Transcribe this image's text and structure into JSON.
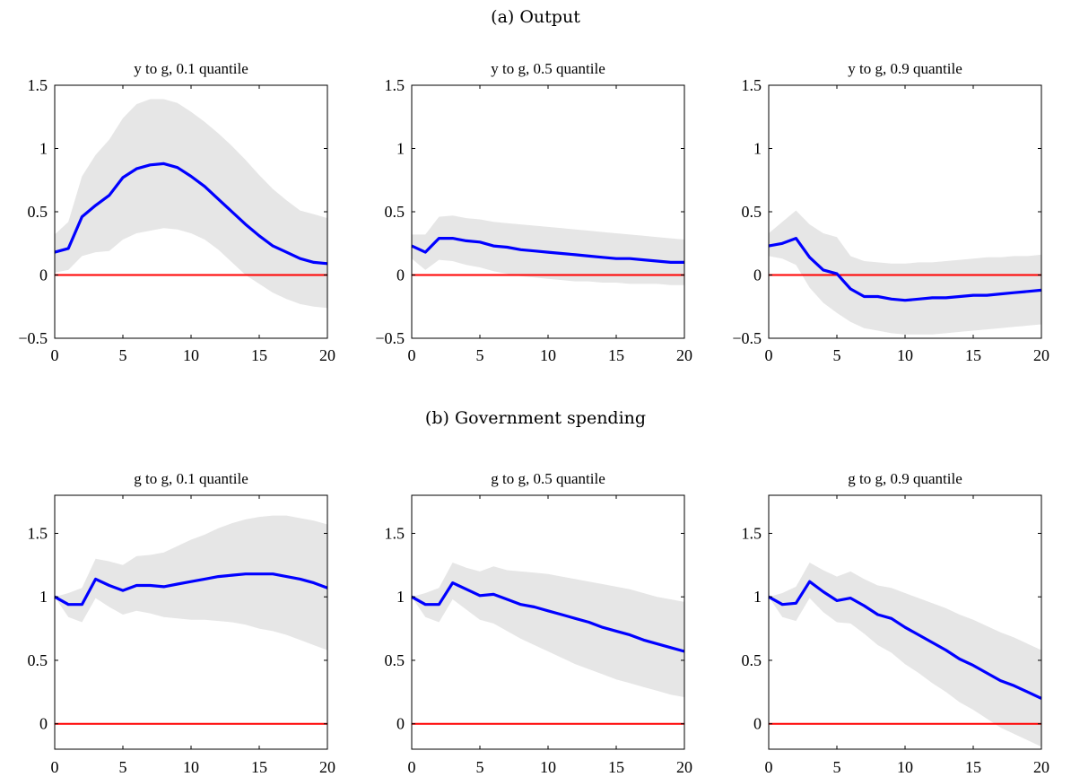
{
  "headings": {
    "a": "(a) Output",
    "b": "(b) Government spending"
  },
  "chart_data": [
    {
      "type": "area",
      "title": "y to g, 0.1 quantile",
      "xlabel": "",
      "ylabel": "",
      "xlim": [
        0,
        20
      ],
      "ylim": [
        -0.5,
        1.5
      ],
      "xticks": [
        0,
        5,
        10,
        15,
        20
      ],
      "yticks": [
        -0.5,
        0,
        0.5,
        1,
        1.5
      ],
      "ytick_labels": [
        "−0.5",
        "0",
        "0.5",
        "1",
        "1.5"
      ],
      "grid": false,
      "reference_line": 0,
      "colors": {
        "line": "#0000ff",
        "band": "#e6e6e6",
        "reference": "#ff0000"
      },
      "x": [
        0,
        1,
        2,
        3,
        4,
        5,
        6,
        7,
        8,
        9,
        10,
        11,
        12,
        13,
        14,
        15,
        16,
        17,
        18,
        19,
        20
      ],
      "median": [
        0.18,
        0.21,
        0.46,
        0.55,
        0.63,
        0.77,
        0.84,
        0.87,
        0.88,
        0.85,
        0.78,
        0.7,
        0.6,
        0.5,
        0.4,
        0.31,
        0.23,
        0.18,
        0.13,
        0.1,
        0.09
      ],
      "lower": [
        0.02,
        0.04,
        0.15,
        0.18,
        0.19,
        0.28,
        0.33,
        0.35,
        0.37,
        0.36,
        0.33,
        0.28,
        0.2,
        0.1,
        0.0,
        -0.07,
        -0.14,
        -0.19,
        -0.23,
        -0.25,
        -0.26
      ],
      "upper": [
        0.32,
        0.42,
        0.78,
        0.95,
        1.07,
        1.24,
        1.35,
        1.39,
        1.39,
        1.36,
        1.29,
        1.21,
        1.12,
        1.02,
        0.91,
        0.79,
        0.68,
        0.59,
        0.51,
        0.48,
        0.45
      ]
    },
    {
      "type": "area",
      "title": "y to g, 0.5 quantile",
      "xlabel": "",
      "ylabel": "",
      "xlim": [
        0,
        20
      ],
      "ylim": [
        -0.5,
        1.5
      ],
      "xticks": [
        0,
        5,
        10,
        15,
        20
      ],
      "yticks": [
        -0.5,
        0,
        0.5,
        1,
        1.5
      ],
      "ytick_labels": [
        "−0.5",
        "0",
        "0.5",
        "1",
        "1.5"
      ],
      "grid": false,
      "reference_line": 0,
      "colors": {
        "line": "#0000ff",
        "band": "#e6e6e6",
        "reference": "#ff0000"
      },
      "x": [
        0,
        1,
        2,
        3,
        4,
        5,
        6,
        7,
        8,
        9,
        10,
        11,
        12,
        13,
        14,
        15,
        16,
        17,
        18,
        19,
        20
      ],
      "median": [
        0.23,
        0.18,
        0.29,
        0.29,
        0.27,
        0.26,
        0.23,
        0.22,
        0.2,
        0.19,
        0.18,
        0.17,
        0.16,
        0.15,
        0.14,
        0.13,
        0.13,
        0.12,
        0.11,
        0.1,
        0.1
      ],
      "lower": [
        0.13,
        0.04,
        0.12,
        0.11,
        0.08,
        0.06,
        0.03,
        0.01,
        -0.01,
        -0.02,
        -0.03,
        -0.04,
        -0.05,
        -0.05,
        -0.06,
        -0.06,
        -0.07,
        -0.07,
        -0.07,
        -0.08,
        -0.08
      ],
      "upper": [
        0.32,
        0.32,
        0.46,
        0.47,
        0.45,
        0.44,
        0.42,
        0.41,
        0.4,
        0.39,
        0.38,
        0.37,
        0.36,
        0.35,
        0.34,
        0.33,
        0.32,
        0.31,
        0.3,
        0.29,
        0.28
      ]
    },
    {
      "type": "area",
      "title": "y to g, 0.9 quantile",
      "xlabel": "",
      "ylabel": "",
      "xlim": [
        0,
        20
      ],
      "ylim": [
        -0.5,
        1.5
      ],
      "xticks": [
        0,
        5,
        10,
        15,
        20
      ],
      "yticks": [
        -0.5,
        0,
        0.5,
        1,
        1.5
      ],
      "ytick_labels": [
        "−0.5",
        "0",
        "0.5",
        "1",
        "1.5"
      ],
      "grid": false,
      "reference_line": 0,
      "colors": {
        "line": "#0000ff",
        "band": "#e6e6e6",
        "reference": "#ff0000"
      },
      "x": [
        0,
        1,
        2,
        3,
        4,
        5,
        6,
        7,
        8,
        9,
        10,
        11,
        12,
        13,
        14,
        15,
        16,
        17,
        18,
        19,
        20
      ],
      "median": [
        0.23,
        0.25,
        0.29,
        0.14,
        0.04,
        0.01,
        -0.11,
        -0.17,
        -0.17,
        -0.19,
        -0.2,
        -0.19,
        -0.18,
        -0.18,
        -0.17,
        -0.16,
        -0.16,
        -0.15,
        -0.14,
        -0.13,
        -0.12
      ],
      "lower": [
        0.15,
        0.13,
        0.08,
        -0.1,
        -0.22,
        -0.3,
        -0.37,
        -0.42,
        -0.44,
        -0.46,
        -0.47,
        -0.47,
        -0.47,
        -0.46,
        -0.45,
        -0.44,
        -0.43,
        -0.42,
        -0.41,
        -0.4,
        -0.39
      ],
      "upper": [
        0.33,
        0.42,
        0.51,
        0.4,
        0.33,
        0.3,
        0.15,
        0.11,
        0.1,
        0.09,
        0.09,
        0.1,
        0.1,
        0.11,
        0.12,
        0.13,
        0.14,
        0.14,
        0.15,
        0.15,
        0.16
      ]
    },
    {
      "type": "area",
      "title": "g to g, 0.1 quantile",
      "xlabel": "",
      "ylabel": "",
      "xlim": [
        0,
        20
      ],
      "ylim": [
        -0.2,
        1.8
      ],
      "xticks": [
        0,
        5,
        10,
        15,
        20
      ],
      "yticks": [
        0,
        0.5,
        1,
        1.5
      ],
      "ytick_labels": [
        "0",
        "0.5",
        "1",
        "1.5"
      ],
      "grid": false,
      "reference_line": 0,
      "colors": {
        "line": "#0000ff",
        "band": "#e6e6e6",
        "reference": "#ff0000"
      },
      "x": [
        0,
        1,
        2,
        3,
        4,
        5,
        6,
        7,
        8,
        9,
        10,
        11,
        12,
        13,
        14,
        15,
        16,
        17,
        18,
        19,
        20
      ],
      "median": [
        1.0,
        0.94,
        0.94,
        1.14,
        1.09,
        1.05,
        1.09,
        1.09,
        1.08,
        1.1,
        1.12,
        1.14,
        1.16,
        1.17,
        1.18,
        1.18,
        1.18,
        1.16,
        1.14,
        1.11,
        1.07
      ],
      "lower": [
        1.0,
        0.84,
        0.8,
        0.99,
        0.92,
        0.86,
        0.89,
        0.87,
        0.84,
        0.83,
        0.82,
        0.82,
        0.81,
        0.8,
        0.78,
        0.75,
        0.73,
        0.7,
        0.66,
        0.62,
        0.58
      ],
      "upper": [
        1.0,
        1.03,
        1.07,
        1.3,
        1.28,
        1.25,
        1.32,
        1.33,
        1.35,
        1.4,
        1.45,
        1.49,
        1.54,
        1.58,
        1.61,
        1.63,
        1.64,
        1.64,
        1.62,
        1.6,
        1.57
      ]
    },
    {
      "type": "area",
      "title": "g to g, 0.5 quantile",
      "xlabel": "",
      "ylabel": "",
      "xlim": [
        0,
        20
      ],
      "ylim": [
        -0.2,
        1.8
      ],
      "xticks": [
        0,
        5,
        10,
        15,
        20
      ],
      "yticks": [
        0,
        0.5,
        1,
        1.5
      ],
      "ytick_labels": [
        "0",
        "0.5",
        "1",
        "1.5"
      ],
      "grid": false,
      "reference_line": 0,
      "colors": {
        "line": "#0000ff",
        "band": "#e6e6e6",
        "reference": "#ff0000"
      },
      "x": [
        0,
        1,
        2,
        3,
        4,
        5,
        6,
        7,
        8,
        9,
        10,
        11,
        12,
        13,
        14,
        15,
        16,
        17,
        18,
        19,
        20
      ],
      "median": [
        1.0,
        0.94,
        0.94,
        1.11,
        1.06,
        1.01,
        1.02,
        0.98,
        0.94,
        0.92,
        0.89,
        0.86,
        0.83,
        0.8,
        0.76,
        0.73,
        0.7,
        0.66,
        0.63,
        0.6,
        0.57
      ],
      "lower": [
        1.0,
        0.84,
        0.8,
        0.98,
        0.9,
        0.82,
        0.79,
        0.73,
        0.67,
        0.62,
        0.57,
        0.52,
        0.47,
        0.43,
        0.39,
        0.35,
        0.32,
        0.29,
        0.26,
        0.23,
        0.21
      ],
      "upper": [
        1.0,
        1.03,
        1.07,
        1.27,
        1.23,
        1.2,
        1.24,
        1.21,
        1.2,
        1.19,
        1.18,
        1.16,
        1.14,
        1.12,
        1.1,
        1.08,
        1.06,
        1.03,
        1.0,
        0.98,
        0.96
      ]
    },
    {
      "type": "area",
      "title": "g to g, 0.9 quantile",
      "xlabel": "",
      "ylabel": "",
      "xlim": [
        0,
        20
      ],
      "ylim": [
        -0.2,
        1.8
      ],
      "xticks": [
        0,
        5,
        10,
        15,
        20
      ],
      "yticks": [
        0,
        0.5,
        1,
        1.5
      ],
      "ytick_labels": [
        "0",
        "0.5",
        "1",
        "1.5"
      ],
      "grid": false,
      "reference_line": 0,
      "colors": {
        "line": "#0000ff",
        "band": "#e6e6e6",
        "reference": "#ff0000"
      },
      "x": [
        0,
        1,
        2,
        3,
        4,
        5,
        6,
        7,
        8,
        9,
        10,
        11,
        12,
        13,
        14,
        15,
        16,
        17,
        18,
        19,
        20
      ],
      "median": [
        1.0,
        0.94,
        0.95,
        1.12,
        1.04,
        0.97,
        0.99,
        0.93,
        0.86,
        0.83,
        0.76,
        0.7,
        0.64,
        0.58,
        0.51,
        0.46,
        0.4,
        0.34,
        0.3,
        0.25,
        0.2
      ],
      "lower": [
        1.0,
        0.84,
        0.81,
        0.99,
        0.88,
        0.8,
        0.79,
        0.71,
        0.62,
        0.56,
        0.47,
        0.4,
        0.32,
        0.25,
        0.17,
        0.11,
        0.04,
        -0.03,
        -0.08,
        -0.13,
        -0.18
      ],
      "upper": [
        1.0,
        1.03,
        1.08,
        1.27,
        1.21,
        1.16,
        1.2,
        1.14,
        1.09,
        1.07,
        1.03,
        0.99,
        0.95,
        0.91,
        0.86,
        0.82,
        0.77,
        0.72,
        0.68,
        0.63,
        0.58
      ]
    }
  ]
}
